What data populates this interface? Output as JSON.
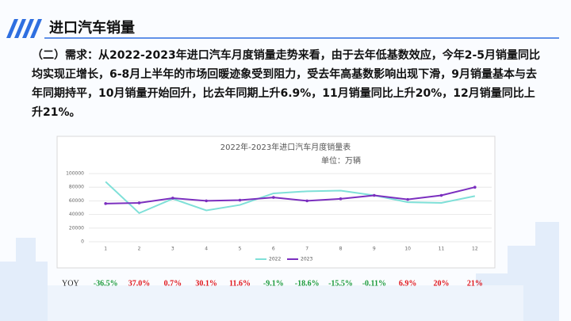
{
  "header": {
    "title": "进口汽车销量"
  },
  "paragraph": "（二）需求：从2022-2023年进口汽车月度销量走势来看，由于去年低基数效应，今年2-5月销量同比均实现正增长，6-8月上半年的市场回暖迹象受到阻力，受去年高基数影响出现下滑，9月销量基本与去年同期持平，10月销量开始回升，比去年同期上升6.9%，11月销量同比上升20%，12月销量同比上升21%。",
  "chart_data": {
    "type": "line",
    "title": "2022年-2023年进口汽车月度销量表",
    "subtitle": "单位：万辆",
    "x": [
      1,
      2,
      3,
      4,
      5,
      6,
      7,
      8,
      9,
      10,
      11,
      12
    ],
    "xlim": [
      0.5,
      12.5
    ],
    "xticks": [
      1,
      2,
      3,
      4,
      5,
      6,
      7,
      8,
      9,
      10,
      11,
      12
    ],
    "ylim": [
      0,
      100000
    ],
    "yticks": [
      0,
      20000,
      40000,
      60000,
      80000,
      100000
    ],
    "grid": true,
    "legend": "bottom",
    "series": [
      {
        "name": "2022",
        "color": "#7fe0d8",
        "values": [
          88000,
          42000,
          63000,
          46000,
          54000,
          71000,
          74000,
          75000,
          68000,
          58000,
          57000,
          67000
        ]
      },
      {
        "name": "2023",
        "color": "#7b2fbf",
        "values": [
          56000,
          57000,
          64000,
          60000,
          61000,
          65000,
          60000,
          63000,
          68000,
          62000,
          68000,
          80000
        ]
      }
    ]
  },
  "yoy": {
    "label": "YOY",
    "values": [
      "-36.5%",
      "37.0%",
      "0.7%",
      "30.1%",
      "11.6%",
      "-9.1%",
      "-18.6%",
      "-15.5%",
      "-0.11%",
      "6.9%",
      "20%",
      "21%"
    ],
    "positive_color": "#e0151b",
    "negative_color": "#1a9a3a"
  }
}
